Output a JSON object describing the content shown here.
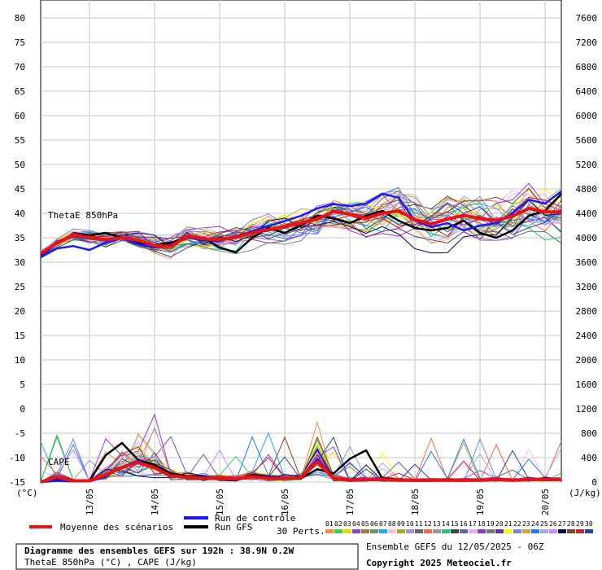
{
  "chart_data": {
    "type": "line",
    "left_axis": {
      "unit": "(°C)",
      "ticks": [
        80,
        75,
        70,
        65,
        60,
        55,
        50,
        45,
        40,
        35,
        30,
        25,
        20,
        15,
        10,
        5,
        0,
        -5,
        -10,
        -15
      ],
      "ylim": [
        -15,
        80
      ]
    },
    "right_axis": {
      "unit": "(J/kg)",
      "ticks": [
        7600,
        7200,
        6800,
        6400,
        6000,
        5600,
        5200,
        4800,
        4400,
        4000,
        3600,
        3200,
        2800,
        2400,
        2000,
        1600,
        1200,
        800,
        400,
        0
      ],
      "ylim": [
        0,
        7600
      ]
    },
    "x_ticks": [
      "13/05",
      "14/05",
      "15/05",
      "16/05",
      "17/05",
      "18/05",
      "19/05",
      "20/05"
    ],
    "x_hours": [
      0,
      6,
      12,
      18,
      24,
      30,
      36,
      42,
      48,
      54,
      60,
      66,
      72,
      78,
      84,
      90,
      96,
      102,
      108,
      114,
      120,
      126,
      132,
      138,
      144,
      150,
      156,
      162,
      168,
      174,
      180,
      186,
      192
    ],
    "panel_labels": [
      "ThetaE 850hPa",
      "CAPE"
    ],
    "series": [
      {
        "name": "Moyenne des scénarios",
        "color": "#ee1111",
        "thetae": [
          31.8,
          33.9,
          35.5,
          35.1,
          34.6,
          35.0,
          34.5,
          33.4,
          33.2,
          35.3,
          34.8,
          34.6,
          35.1,
          36.0,
          36.6,
          37.3,
          38.0,
          38.8,
          40.4,
          39.8,
          39.0,
          40.0,
          40.5,
          38.7,
          37.8,
          38.8,
          39.6,
          38.9,
          38.6,
          39.4,
          41.0,
          40.3,
          40.3
        ],
        "cape": [
          0,
          80,
          20,
          20,
          120,
          240,
          320,
          230,
          100,
          80,
          60,
          60,
          50,
          90,
          60,
          60,
          70,
          330,
          60,
          30,
          40,
          40,
          30,
          30,
          30,
          30,
          30,
          30,
          40,
          30,
          40,
          40,
          40
        ]
      },
      {
        "name": "Run de contrôle",
        "color": "#1a1aff",
        "thetae": [
          31.0,
          32.8,
          33.3,
          32.5,
          34.0,
          34.9,
          33.6,
          33.0,
          33.6,
          35.0,
          34.5,
          34.3,
          35.3,
          36.3,
          37.4,
          38.4,
          39.5,
          41.0,
          41.9,
          41.5,
          42.0,
          44.0,
          43.2,
          38.5,
          37.2,
          38.0,
          36.5,
          37.5,
          38.0,
          40.0,
          42.8,
          42.0,
          44.5
        ],
        "cape": [
          0,
          20,
          10,
          10,
          90,
          250,
          350,
          230,
          90,
          70,
          80,
          60,
          40,
          90,
          80,
          50,
          60,
          380,
          60,
          20,
          30,
          30,
          30,
          20,
          20,
          30,
          20,
          40,
          50,
          30,
          60,
          40,
          40
        ]
      },
      {
        "name": "Run GFS",
        "color": "#000000",
        "thetae": [
          31.5,
          34.0,
          35.5,
          35.5,
          36.0,
          35.0,
          34.0,
          33.5,
          34.0,
          35.0,
          35.0,
          33.0,
          32.0,
          35.0,
          37.0,
          36.0,
          37.5,
          39.5,
          39.0,
          38.0,
          39.5,
          40.5,
          38.5,
          37.0,
          36.5,
          37.0,
          38.5,
          36.0,
          35.0,
          36.5,
          39.5,
          40.5,
          44.0
        ],
        "cape": [
          0,
          40,
          30,
          20,
          440,
          640,
          360,
          280,
          140,
          100,
          90,
          60,
          40,
          120,
          90,
          60,
          60,
          210,
          140,
          380,
          520,
          60,
          40,
          30,
          30,
          30,
          30,
          40,
          40,
          30,
          40,
          40,
          40
        ]
      }
    ],
    "members": [
      "01",
      "02",
      "03",
      "04",
      "05",
      "06",
      "07",
      "08",
      "09",
      "10",
      "11",
      "12",
      "13",
      "14",
      "15",
      "16",
      "17",
      "18",
      "19",
      "20",
      "21",
      "22",
      "23",
      "24",
      "25",
      "26",
      "27",
      "28",
      "29",
      "30"
    ],
    "member_colors": [
      "#ff8844",
      "#44cc44",
      "#dddd00",
      "#8844dd",
      "#aa7744",
      "#669966",
      "#22aaee",
      "#ffbbdd",
      "#aaaa22",
      "#9999cc",
      "#666666",
      "#ff6644",
      "#999999",
      "#22cc66",
      "#444444",
      "#666699",
      "#eeaaee",
      "#9933cc",
      "#777777",
      "#663399",
      "#ffff00",
      "#7788cc",
      "#ccaa33",
      "#2277ff",
      "#aaaadd",
      "#cc88ff",
      "#000066",
      "#884422",
      "#cc2222",
      "#2244aa"
    ]
  },
  "legend": {
    "mean_label": "Moyenne des scénarios",
    "control_label": "Run de contrôle",
    "gfs_label": "Run GFS",
    "perts_label": "30 Perts."
  },
  "footer": {
    "title_line1": "Diagramme des ensembles GEFS sur 192h : 38.9N 0.2W",
    "title_line2": "ThetaE 850hPa (°C) , CAPE (J/kg)",
    "run_info": "Ensemble GEFS du 12/05/2025 - 06Z",
    "copyright": "Copyright 2025 Meteociel.fr"
  }
}
